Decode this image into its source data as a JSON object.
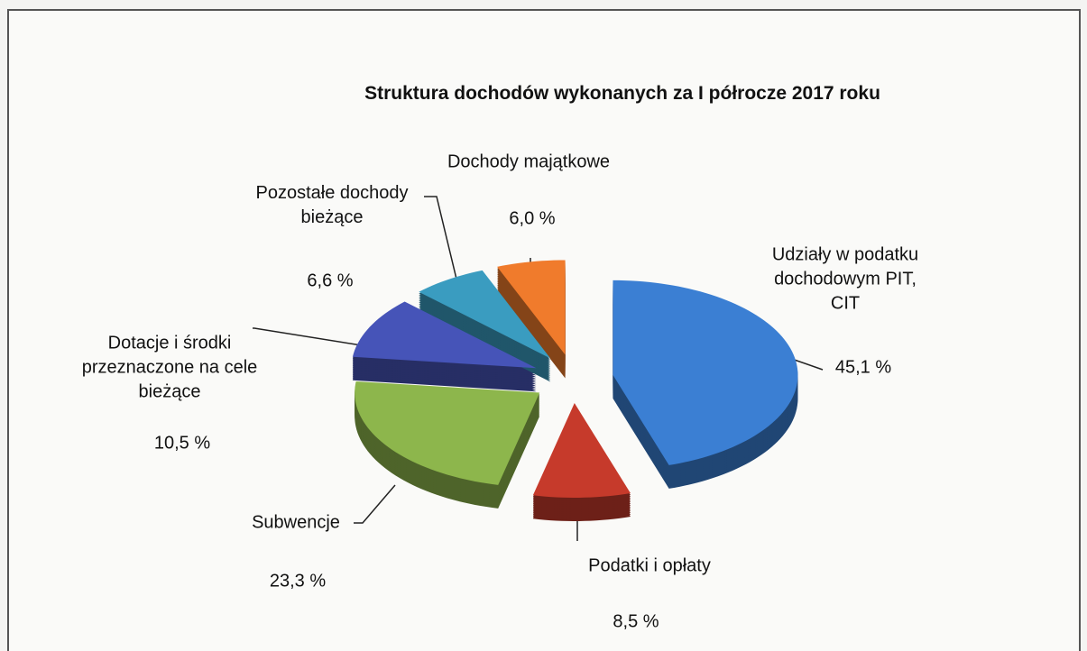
{
  "chart_data": {
    "type": "pie3d",
    "title": "Struktura dochodów wykonanych za I półrocze 2017 roku",
    "categories": [
      "Udziały w podatku dochodowym PIT, CIT",
      "Podatki i opłaty",
      "Subwencje",
      "Dotacje i środki przeznaczone na cele bieżące",
      "Pozostałe dochody bieżące",
      "Dochody majątkowe"
    ],
    "values": [
      45.1,
      8.5,
      23.3,
      10.5,
      6.6,
      6.0
    ],
    "value_labels": [
      "45,1 %",
      "8,5 %",
      "23,3 %",
      "10,5 %",
      "6,6 %",
      "6,0  %"
    ],
    "colors": [
      "#3b7fd3",
      "#c63a2b",
      "#8db64c",
      "#4654b8",
      "#3a9cc0",
      "#f07b2c"
    ]
  }
}
